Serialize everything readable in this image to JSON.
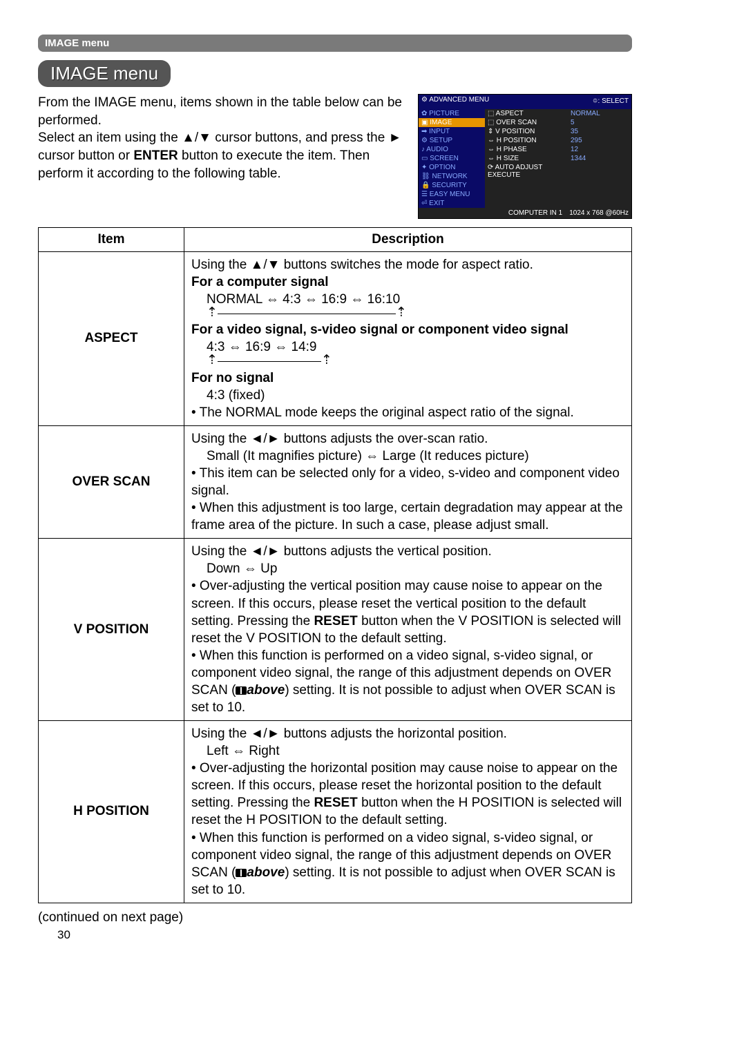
{
  "header_bar": "IMAGE menu",
  "pill_title": "IMAGE menu",
  "intro": {
    "p1a": "From the IMAGE menu, items shown in the table below can be performed.",
    "p2a": "Select an item using the ▲/▼ cursor buttons, and press the ► cursor button or ",
    "p2b": "ENTER",
    "p2c": " button to execute the item. Then perform it according to the following table."
  },
  "osd": {
    "top_left": "⚙ ADVANCED MENU",
    "top_right": "⯐: SELECT",
    "left_items": [
      "✿ PICTURE",
      "▣ IMAGE",
      "➡ INPUT",
      "⚙ SETUP",
      "♪ AUDIO",
      "▭ SCREEN",
      "✦ OPTION",
      "⛓ NETWORK",
      "🔒 SECURITY",
      "☰ EASY MENU",
      "⏎ EXIT"
    ],
    "left_selected_index": 1,
    "center_items": [
      "⬚ ASPECT",
      "⬚ OVER SCAN",
      "⇕ V POSITION",
      "⇔ H POSITION",
      "⇔ H PHASE",
      "⇔ H SIZE",
      "⟳ AUTO ADJUST EXECUTE"
    ],
    "right_items": [
      "NORMAL",
      "5",
      "35",
      "295",
      "12",
      "1344",
      ""
    ],
    "bottom_left": "COMPUTER IN 1",
    "bottom_right": "1024 x 768 @60Hz"
  },
  "table": {
    "h1": "Item",
    "h2": "Description",
    "rows": [
      {
        "item": "ASPECT",
        "desc": {
          "l1": "Using the ▲/▼ buttons switches the mode for aspect ratio.",
          "l2": "For a computer signal",
          "l3": "NORMAL ⇔ 4:3 ⇔ 16:9 ⇔ 16:10",
          "cycle1_width": 258,
          "l4": "For a video signal, s-video signal or component video signal",
          "l5": "4:3 ⇔ 16:9 ⇔ 14:9",
          "cycle2_width": 150,
          "l6": "For no signal",
          "l7": "4:3 (fixed)",
          "l8": "• The NORMAL mode keeps the original aspect ratio of the signal."
        }
      },
      {
        "item": "OVER SCAN",
        "desc": {
          "l1": "Using the ◄/► buttons adjusts the over-scan ratio.",
          "l2": "Small (It magnifies picture) ⇔ Large (It reduces picture)",
          "l3": "• This item can be selected only for a video, s-video and component video signal.",
          "l4": "• When this adjustment is too large, certain degradation may appear at the frame area of the picture. In such a case, please adjust small."
        }
      },
      {
        "item": "V POSITION",
        "desc": {
          "l1": "Using the ◄/► buttons adjusts the vertical position.",
          "l2": "Down ⇔ Up",
          "l3a": "• Over-adjusting the vertical position may cause noise to appear on the screen. If this occurs, please reset the vertical position to the default setting. Pressing the ",
          "l3b": "RESET",
          "l3c": " button when the V POSITION is selected will reset the V POSITION to the default setting.",
          "l4a": "• When this function is performed on a video signal, s-video signal, or component video signal, the range of this adjustment depends on OVER SCAN (",
          "l4b": "above",
          "l4c": ") setting. It is not possible to adjust when OVER SCAN is set to 10."
        }
      },
      {
        "item": "H POSITION",
        "desc": {
          "l1": "Using the ◄/► buttons adjusts the horizontal position.",
          "l2": "Left ⇔ Right",
          "l3a": "• Over-adjusting the horizontal position may cause noise to appear on the screen. If this occurs, please reset the horizontal position to the default setting. Pressing the ",
          "l3b": "RESET",
          "l3c": " button when the H POSITION is selected will reset the H POSITION to the default setting.",
          "l4a": "• When this function is performed on a video signal, s-video signal, or component video signal, the range of this adjustment depends on OVER SCAN (",
          "l4b": "above",
          "l4c": ") setting. It is not possible to adjust when OVER SCAN is set to 10."
        }
      }
    ]
  },
  "continued": "(continued on next page)",
  "page_num": "30"
}
